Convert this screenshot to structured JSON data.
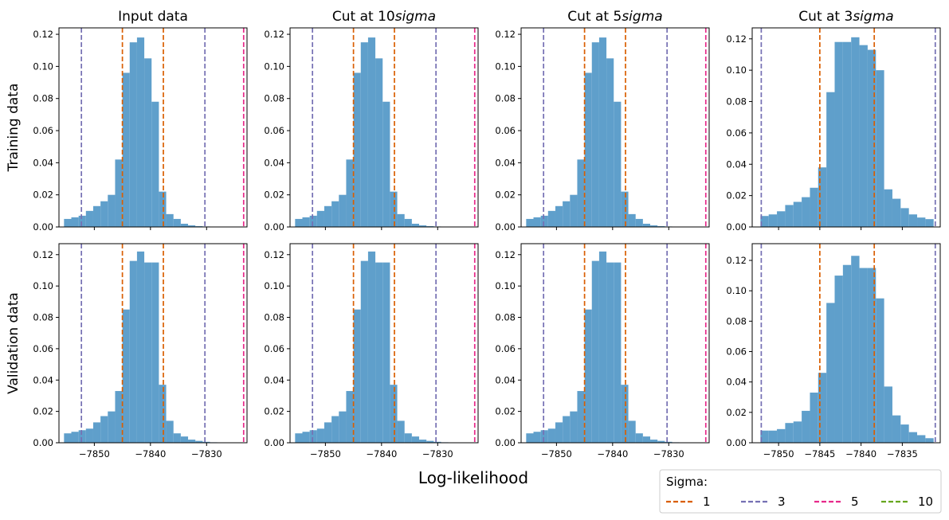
{
  "figure": {
    "xlabel": "Log-likelihood",
    "row_labels": [
      "Training data",
      "Validation data"
    ],
    "col_titles": [
      "Input data",
      "Cut at 10sigma",
      "Cut at 5sigma",
      "Cut at 3sigma"
    ],
    "col_titles_parts": [
      {
        "plain": "Input data",
        "italic": ""
      },
      {
        "plain": "Cut at 10",
        "italic": "sigma"
      },
      {
        "plain": "Cut at 5",
        "italic": "sigma"
      },
      {
        "plain": "Cut at 3",
        "italic": "sigma"
      }
    ]
  },
  "legend": {
    "title": "Sigma:",
    "placement": "lower-right",
    "entries": [
      {
        "label": "1",
        "color": "#d95f02"
      },
      {
        "label": "3",
        "color": "#7570b3"
      },
      {
        "label": "5",
        "color": "#e7298a"
      },
      {
        "label": "10",
        "color": "#66a61e"
      }
    ]
  },
  "colors": {
    "bars": "#5f9fcb"
  },
  "chart_data": [
    {
      "type": "bar",
      "row": 0,
      "col": 0,
      "title": "Input data",
      "ylabel": "Training data",
      "xlim": [
        -7856.3,
        -7822.8
      ],
      "ylim": [
        0,
        0.124
      ],
      "xticks": [
        -7850,
        -7840,
        -7830
      ],
      "xtick_labels": [
        "-7850",
        "-7840",
        "-7830"
      ],
      "yticks": [
        0,
        0.02,
        0.04,
        0.06,
        0.08,
        0.1,
        0.12
      ],
      "ytick_labels": [
        "0.00",
        "0.02",
        "0.04",
        "0.06",
        "0.08",
        "0.10",
        "0.12"
      ],
      "bin_edges": [
        -7855.4,
        -7854.1,
        -7852.8,
        -7851.5,
        -7850.2,
        -7848.9,
        -7847.6,
        -7846.3,
        -7845.0,
        -7843.7,
        -7842.4,
        -7841.1,
        -7839.8,
        -7838.5,
        -7837.2,
        -7835.9,
        -7834.6,
        -7833.3,
        -7832.0,
        -7830.7,
        -7829.4,
        -7828.1,
        -7826.8,
        -7825.5
      ],
      "values": [
        0.005,
        0.006,
        0.007,
        0.01,
        0.013,
        0.016,
        0.02,
        0.042,
        0.096,
        0.115,
        0.118,
        0.105,
        0.078,
        0.022,
        0.008,
        0.005,
        0.002,
        0.001,
        0.0005,
        0.0003,
        0.0002,
        0.0001,
        0.0001
      ],
      "sigma_lines": [
        {
          "sigma": "1",
          "x": [
            -7845.0,
            -7837.7
          ]
        },
        {
          "sigma": "3",
          "x": [
            -7852.3,
            -7830.3
          ]
        },
        {
          "sigma": "5",
          "x": [
            -7823.4
          ]
        }
      ]
    },
    {
      "type": "bar",
      "row": 0,
      "col": 1,
      "title": "Cut at 10sigma",
      "ylabel": "",
      "xlim": [
        -7856.3,
        -7822.8
      ],
      "ylim": [
        0,
        0.124
      ],
      "xticks": [
        -7850,
        -7840,
        -7830
      ],
      "xtick_labels": [
        "-7850",
        "-7840",
        "-7830"
      ],
      "yticks": [
        0,
        0.02,
        0.04,
        0.06,
        0.08,
        0.1,
        0.12
      ],
      "ytick_labels": [
        "0.00",
        "0.02",
        "0.04",
        "0.06",
        "0.08",
        "0.10",
        "0.12"
      ],
      "bin_edges": [
        -7855.4,
        -7854.1,
        -7852.8,
        -7851.5,
        -7850.2,
        -7848.9,
        -7847.6,
        -7846.3,
        -7845.0,
        -7843.7,
        -7842.4,
        -7841.1,
        -7839.8,
        -7838.5,
        -7837.2,
        -7835.9,
        -7834.6,
        -7833.3,
        -7832.0,
        -7830.7,
        -7829.4,
        -7828.1,
        -7826.8,
        -7825.5
      ],
      "values": [
        0.005,
        0.006,
        0.007,
        0.01,
        0.013,
        0.016,
        0.02,
        0.042,
        0.096,
        0.115,
        0.118,
        0.105,
        0.078,
        0.022,
        0.008,
        0.005,
        0.002,
        0.001,
        0.0005,
        0.0003,
        0.0002,
        0.0001,
        0.0001
      ],
      "sigma_lines": [
        {
          "sigma": "1",
          "x": [
            -7845.0,
            -7837.7
          ]
        },
        {
          "sigma": "3",
          "x": [
            -7852.3,
            -7830.3
          ]
        },
        {
          "sigma": "5",
          "x": [
            -7823.4
          ]
        }
      ]
    },
    {
      "type": "bar",
      "row": 0,
      "col": 2,
      "title": "Cut at 5sigma",
      "ylabel": "",
      "xlim": [
        -7856.3,
        -7822.8
      ],
      "ylim": [
        0,
        0.124
      ],
      "xticks": [
        -7850,
        -7840,
        -7830
      ],
      "xtick_labels": [
        "-7850",
        "-7840",
        "-7830"
      ],
      "yticks": [
        0,
        0.02,
        0.04,
        0.06,
        0.08,
        0.1,
        0.12
      ],
      "ytick_labels": [
        "0.00",
        "0.02",
        "0.04",
        "0.06",
        "0.08",
        "0.10",
        "0.12"
      ],
      "bin_edges": [
        -7855.4,
        -7854.1,
        -7852.8,
        -7851.5,
        -7850.2,
        -7848.9,
        -7847.6,
        -7846.3,
        -7845.0,
        -7843.7,
        -7842.4,
        -7841.1,
        -7839.8,
        -7838.5,
        -7837.2,
        -7835.9,
        -7834.6,
        -7833.3,
        -7832.0,
        -7830.7,
        -7829.4,
        -7828.1,
        -7826.8,
        -7825.5
      ],
      "values": [
        0.005,
        0.006,
        0.007,
        0.01,
        0.013,
        0.016,
        0.02,
        0.042,
        0.096,
        0.115,
        0.118,
        0.105,
        0.078,
        0.022,
        0.008,
        0.005,
        0.002,
        0.001,
        0.0005,
        0.0003,
        0.0002,
        0.0001,
        0.0001
      ],
      "sigma_lines": [
        {
          "sigma": "1",
          "x": [
            -7845.0,
            -7837.7
          ]
        },
        {
          "sigma": "3",
          "x": [
            -7852.3,
            -7830.3
          ]
        },
        {
          "sigma": "5",
          "x": [
            -7823.4
          ]
        }
      ]
    },
    {
      "type": "bar",
      "row": 0,
      "col": 3,
      "title": "Cut at 3sigma",
      "ylabel": "",
      "xlim": [
        -7853.2,
        -7830.4
      ],
      "ylim": [
        0,
        0.127
      ],
      "xticks": [
        -7850,
        -7845,
        -7840,
        -7835
      ],
      "xtick_labels": [
        "-7850",
        "-7845",
        "-7840",
        "-7835"
      ],
      "yticks": [
        0,
        0.02,
        0.04,
        0.06,
        0.08,
        0.1,
        0.12
      ],
      "ytick_labels": [
        "0.00",
        "0.02",
        "0.04",
        "0.06",
        "0.08",
        "0.10",
        "0.12"
      ],
      "bin_edges": [
        -7852.2,
        -7851.2,
        -7850.2,
        -7849.2,
        -7848.2,
        -7847.2,
        -7846.2,
        -7845.2,
        -7844.2,
        -7843.2,
        -7842.2,
        -7841.2,
        -7840.2,
        -7839.2,
        -7838.2,
        -7837.2,
        -7836.2,
        -7835.2,
        -7834.2,
        -7833.2,
        -7832.2,
        -7831.2
      ],
      "values": [
        0.007,
        0.008,
        0.01,
        0.014,
        0.016,
        0.019,
        0.025,
        0.038,
        0.086,
        0.118,
        0.118,
        0.121,
        0.116,
        0.113,
        0.1,
        0.024,
        0.018,
        0.012,
        0.008,
        0.006,
        0.005
      ],
      "sigma_lines": [
        {
          "sigma": "1",
          "x": [
            -7845.0,
            -7838.4
          ]
        },
        {
          "sigma": "3",
          "x": [
            -7852.1,
            -7831.0
          ]
        }
      ]
    },
    {
      "type": "bar",
      "row": 1,
      "col": 0,
      "title": "",
      "ylabel": "Validation data",
      "xlim": [
        -7856.3,
        -7822.8
      ],
      "ylim": [
        0,
        0.127
      ],
      "xticks": [
        -7850,
        -7840,
        -7830
      ],
      "xtick_labels": [
        "-7850",
        "-7840",
        "-7830"
      ],
      "yticks": [
        0,
        0.02,
        0.04,
        0.06,
        0.08,
        0.1,
        0.12
      ],
      "ytick_labels": [
        "0.00",
        "0.02",
        "0.04",
        "0.06",
        "0.08",
        "0.10",
        "0.12"
      ],
      "bin_edges": [
        -7855.4,
        -7854.1,
        -7852.8,
        -7851.5,
        -7850.2,
        -7848.9,
        -7847.6,
        -7846.3,
        -7845.0,
        -7843.7,
        -7842.4,
        -7841.1,
        -7839.8,
        -7838.5,
        -7837.2,
        -7835.9,
        -7834.6,
        -7833.3,
        -7832.0,
        -7830.7,
        -7829.4,
        -7828.1,
        -7826.8,
        -7825.5
      ],
      "values": [
        0.006,
        0.007,
        0.008,
        0.009,
        0.013,
        0.017,
        0.02,
        0.033,
        0.085,
        0.116,
        0.122,
        0.115,
        0.115,
        0.037,
        0.014,
        0.006,
        0.004,
        0.002,
        0.0012,
        0.0006,
        0.0003,
        0.0002,
        0.0001
      ],
      "sigma_lines": [
        {
          "sigma": "1",
          "x": [
            -7845.0,
            -7837.7
          ]
        },
        {
          "sigma": "3",
          "x": [
            -7852.3,
            -7830.3
          ]
        },
        {
          "sigma": "5",
          "x": [
            -7823.4
          ]
        }
      ]
    },
    {
      "type": "bar",
      "row": 1,
      "col": 1,
      "title": "",
      "ylabel": "",
      "xlim": [
        -7856.3,
        -7822.8
      ],
      "ylim": [
        0,
        0.127
      ],
      "xticks": [
        -7850,
        -7840,
        -7830
      ],
      "xtick_labels": [
        "-7850",
        "-7840",
        "-7830"
      ],
      "yticks": [
        0,
        0.02,
        0.04,
        0.06,
        0.08,
        0.1,
        0.12
      ],
      "ytick_labels": [
        "0.00",
        "0.02",
        "0.04",
        "0.06",
        "0.08",
        "0.10",
        "0.12"
      ],
      "bin_edges": [
        -7855.4,
        -7854.1,
        -7852.8,
        -7851.5,
        -7850.2,
        -7848.9,
        -7847.6,
        -7846.3,
        -7845.0,
        -7843.7,
        -7842.4,
        -7841.1,
        -7839.8,
        -7838.5,
        -7837.2,
        -7835.9,
        -7834.6,
        -7833.3,
        -7832.0,
        -7830.7,
        -7829.4,
        -7828.1,
        -7826.8,
        -7825.5
      ],
      "values": [
        0.006,
        0.007,
        0.008,
        0.009,
        0.013,
        0.017,
        0.02,
        0.033,
        0.085,
        0.116,
        0.122,
        0.115,
        0.115,
        0.037,
        0.014,
        0.006,
        0.004,
        0.002,
        0.0012,
        0.0006,
        0.0003,
        0.0002,
        0.0001
      ],
      "sigma_lines": [
        {
          "sigma": "1",
          "x": [
            -7845.0,
            -7837.7
          ]
        },
        {
          "sigma": "3",
          "x": [
            -7852.3,
            -7830.3
          ]
        },
        {
          "sigma": "5",
          "x": [
            -7823.4
          ]
        }
      ]
    },
    {
      "type": "bar",
      "row": 1,
      "col": 2,
      "title": "",
      "ylabel": "",
      "xlim": [
        -7856.3,
        -7822.8
      ],
      "ylim": [
        0,
        0.127
      ],
      "xticks": [
        -7850,
        -7840,
        -7830
      ],
      "xtick_labels": [
        "-7850",
        "-7840",
        "-7830"
      ],
      "yticks": [
        0,
        0.02,
        0.04,
        0.06,
        0.08,
        0.1,
        0.12
      ],
      "ytick_labels": [
        "0.00",
        "0.02",
        "0.04",
        "0.06",
        "0.08",
        "0.10",
        "0.12"
      ],
      "bin_edges": [
        -7855.4,
        -7854.1,
        -7852.8,
        -7851.5,
        -7850.2,
        -7848.9,
        -7847.6,
        -7846.3,
        -7845.0,
        -7843.7,
        -7842.4,
        -7841.1,
        -7839.8,
        -7838.5,
        -7837.2,
        -7835.9,
        -7834.6,
        -7833.3,
        -7832.0,
        -7830.7,
        -7829.4,
        -7828.1,
        -7826.8,
        -7825.5
      ],
      "values": [
        0.006,
        0.007,
        0.008,
        0.009,
        0.013,
        0.017,
        0.02,
        0.033,
        0.085,
        0.116,
        0.122,
        0.115,
        0.115,
        0.037,
        0.014,
        0.006,
        0.004,
        0.002,
        0.0012,
        0.0006,
        0.0003,
        0.0002,
        0.0001
      ],
      "sigma_lines": [
        {
          "sigma": "1",
          "x": [
            -7845.0,
            -7837.7
          ]
        },
        {
          "sigma": "3",
          "x": [
            -7852.3,
            -7830.3
          ]
        },
        {
          "sigma": "5",
          "x": [
            -7823.4
          ]
        }
      ]
    },
    {
      "type": "bar",
      "row": 1,
      "col": 3,
      "title": "",
      "ylabel": "",
      "xlim": [
        -7853.2,
        -7830.4
      ],
      "ylim": [
        0,
        0.131
      ],
      "xticks": [
        -7850,
        -7845,
        -7840,
        -7835
      ],
      "xtick_labels": [
        "-7850",
        "-7845",
        "-7840",
        "-7835"
      ],
      "yticks": [
        0,
        0.02,
        0.04,
        0.06,
        0.08,
        0.1,
        0.12
      ],
      "ytick_labels": [
        "0.00",
        "0.02",
        "0.04",
        "0.06",
        "0.08",
        "0.10",
        "0.12"
      ],
      "bin_edges": [
        -7852.2,
        -7851.2,
        -7850.2,
        -7849.2,
        -7848.2,
        -7847.2,
        -7846.2,
        -7845.2,
        -7844.2,
        -7843.2,
        -7842.2,
        -7841.2,
        -7840.2,
        -7839.2,
        -7838.2,
        -7837.2,
        -7836.2,
        -7835.2,
        -7834.2,
        -7833.2,
        -7832.2,
        -7831.2
      ],
      "values": [
        0.008,
        0.008,
        0.009,
        0.013,
        0.014,
        0.021,
        0.033,
        0.046,
        0.092,
        0.11,
        0.117,
        0.123,
        0.115,
        0.115,
        0.095,
        0.037,
        0.018,
        0.012,
        0.007,
        0.005,
        0.003
      ],
      "sigma_lines": [
        {
          "sigma": "1",
          "x": [
            -7845.0,
            -7838.4
          ]
        },
        {
          "sigma": "3",
          "x": [
            -7852.1,
            -7831.0
          ]
        }
      ]
    }
  ]
}
